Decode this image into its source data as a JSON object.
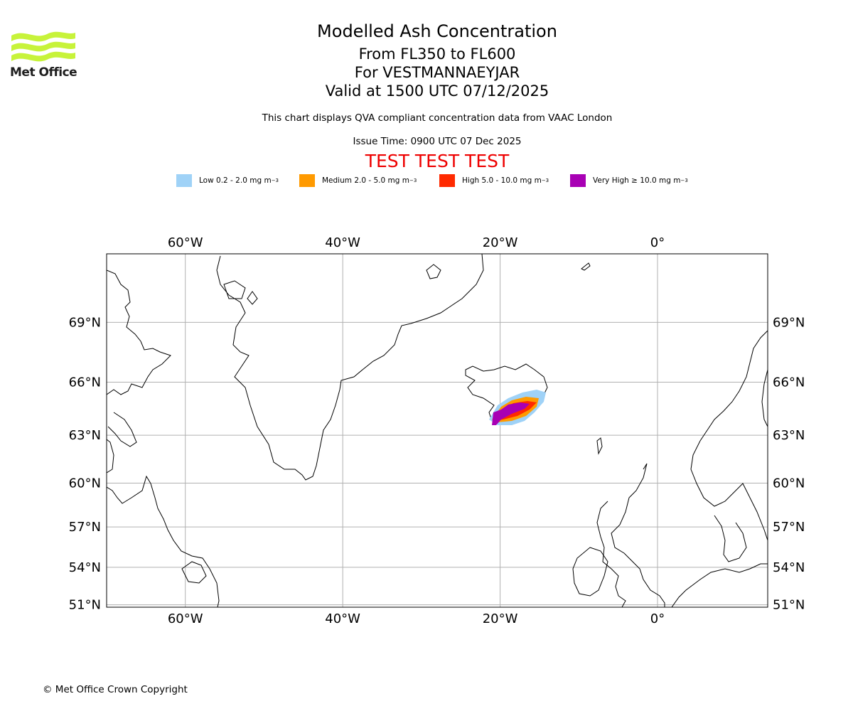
{
  "header": {
    "title": "Modelled Ash Concentration",
    "flight_levels": "From FL350 to FL600",
    "volcano": "For VESTMANNAEYJAR",
    "valid_time": "Valid at 1500 UTC 07/12/2025",
    "disclaimer": "This chart displays QVA compliant concentration data from VAAC London",
    "issue_time": "Issue Time: 0900 UTC 07 Dec 2025",
    "test_banner": "TEST TEST TEST"
  },
  "logo": {
    "text": "Met Office",
    "color": "#c7f33a"
  },
  "legend": [
    {
      "label": "Low 0.2 - 2.0 mg m",
      "sup": "−3",
      "color": "#9fd2f7"
    },
    {
      "label": "Medium 2.0 - 5.0 mg m",
      "sup": "−3",
      "color": "#ff9a00"
    },
    {
      "label": "High 5.0 - 10.0 mg m",
      "sup": "−3",
      "color": "#ff2a00"
    },
    {
      "label": "Very High  ≥  10.0 mg m",
      "sup": "−3",
      "color": "#a800b4"
    }
  ],
  "map": {
    "lon_range": [
      -70,
      14
    ],
    "lat_range": [
      50.8,
      72.0
    ],
    "lon_ticks": [
      {
        "value": -60,
        "label": "60°W"
      },
      {
        "value": -40,
        "label": "40°W"
      },
      {
        "value": -20,
        "label": "20°W"
      },
      {
        "value": 0,
        "label": "0°"
      }
    ],
    "lat_ticks": [
      {
        "value": 69,
        "label": "69°N"
      },
      {
        "value": 66,
        "label": "66°N"
      },
      {
        "value": 63,
        "label": "63°N"
      },
      {
        "value": 60,
        "label": "60°N"
      },
      {
        "value": 57,
        "label": "57°N"
      },
      {
        "value": 54,
        "label": "54°N"
      },
      {
        "value": 51,
        "label": "51°N"
      }
    ],
    "grid": true
  },
  "footer": {
    "copyright": "© Met Office Crown Copyright"
  }
}
